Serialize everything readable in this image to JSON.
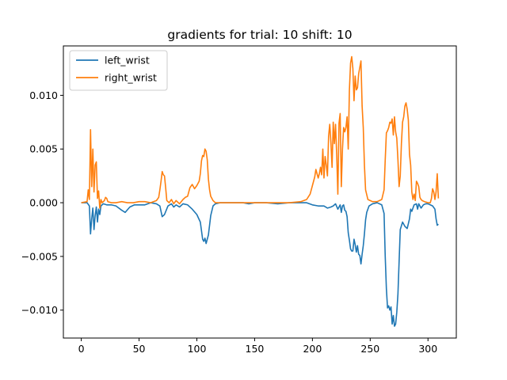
{
  "chart_data": {
    "type": "line",
    "title": "gradients for trial: 10 shift: 10",
    "xlabel": "",
    "ylabel": "",
    "xlim": [
      -15.5,
      324.5
    ],
    "ylim": [
      -0.0126,
      0.0146
    ],
    "xticks": [
      0,
      50,
      100,
      150,
      200,
      250,
      300
    ],
    "yticks": [
      -0.01,
      -0.005,
      0.0,
      0.005,
      0.01
    ],
    "ytick_labels": [
      "−0.010",
      "−0.005",
      "0.000",
      "0.005",
      "0.010"
    ],
    "grid": false,
    "legend_position": "upper-left",
    "series": [
      {
        "name": "left_wrist",
        "color": "#1f77b4",
        "points": [
          [
            0,
            0
          ],
          [
            5,
            0
          ],
          [
            7,
            -0.0003
          ],
          [
            8,
            -0.0029
          ],
          [
            9,
            -0.0015
          ],
          [
            10,
            -0.0005
          ],
          [
            11,
            -0.0025
          ],
          [
            12,
            -0.0012
          ],
          [
            13,
            -0.0004
          ],
          [
            14,
            -0.0018
          ],
          [
            15,
            -0.0006
          ],
          [
            16,
            -0.0011
          ],
          [
            17,
            -0.0003
          ],
          [
            19,
            -0.0001
          ],
          [
            22,
            -0.0002
          ],
          [
            26,
            -0.0002
          ],
          [
            30,
            -0.0003
          ],
          [
            35,
            -0.0007
          ],
          [
            38,
            -0.0009
          ],
          [
            42,
            -0.0004
          ],
          [
            46,
            -0.0002
          ],
          [
            50,
            -0.0002
          ],
          [
            55,
            -0.0002
          ],
          [
            60,
            0
          ],
          [
            65,
            -0.0001
          ],
          [
            68,
            -0.0003
          ],
          [
            70,
            -0.0013
          ],
          [
            72,
            -0.0011
          ],
          [
            75,
            -0.0003
          ],
          [
            78,
            -0.0001
          ],
          [
            80,
            -0.0004
          ],
          [
            82,
            -0.0002
          ],
          [
            85,
            -0.0004
          ],
          [
            88,
            -0.0001
          ],
          [
            92,
            -0.0002
          ],
          [
            96,
            -0.0006
          ],
          [
            100,
            -0.0011
          ],
          [
            103,
            -0.0018
          ],
          [
            105,
            -0.0034
          ],
          [
            106,
            -0.0036
          ],
          [
            107,
            -0.0033
          ],
          [
            108,
            -0.0038
          ],
          [
            110,
            -0.003
          ],
          [
            112,
            -0.0012
          ],
          [
            114,
            -0.0003
          ],
          [
            116,
            -0.0001
          ],
          [
            120,
            0
          ],
          [
            130,
            0
          ],
          [
            140,
            0
          ],
          [
            145,
            -0.0001
          ],
          [
            150,
            0
          ],
          [
            160,
            0
          ],
          [
            170,
            -0.0001
          ],
          [
            180,
            0
          ],
          [
            190,
            0
          ],
          [
            195,
            0
          ],
          [
            200,
            -0.0002
          ],
          [
            205,
            -0.0003
          ],
          [
            210,
            -0.0003
          ],
          [
            213,
            -0.0005
          ],
          [
            216,
            -0.0004
          ],
          [
            218,
            -0.0003
          ],
          [
            220,
            -0.0001
          ],
          [
            222,
            -0.0006
          ],
          [
            223,
            -0.0004
          ],
          [
            224,
            -0.0002
          ],
          [
            225,
            -0.0009
          ],
          [
            226,
            -0.0003
          ],
          [
            227,
            -0.0002
          ],
          [
            228,
            -0.0007
          ],
          [
            229,
            -0.0008
          ],
          [
            230,
            -0.0013
          ],
          [
            231,
            -0.0028
          ],
          [
            232,
            -0.0035
          ],
          [
            233,
            -0.0043
          ],
          [
            234,
            -0.0045
          ],
          [
            235,
            -0.0045
          ],
          [
            236,
            -0.0034
          ],
          [
            237,
            -0.0039
          ],
          [
            238,
            -0.0046
          ],
          [
            239,
            -0.004
          ],
          [
            240,
            -0.0048
          ],
          [
            241,
            -0.0049
          ],
          [
            242,
            -0.0057
          ],
          [
            243,
            -0.0048
          ],
          [
            244,
            -0.004
          ],
          [
            245,
            -0.0029
          ],
          [
            246,
            -0.0016
          ],
          [
            247,
            -0.0009
          ],
          [
            249,
            -0.0003
          ],
          [
            252,
            -0.0001
          ],
          [
            256,
            0
          ],
          [
            260,
            -0.0002
          ],
          [
            262,
            -0.001
          ],
          [
            263,
            -0.005
          ],
          [
            264,
            -0.008
          ],
          [
            265,
            -0.0098
          ],
          [
            266,
            -0.0096
          ],
          [
            267,
            -0.01
          ],
          [
            268,
            -0.0097
          ],
          [
            269,
            -0.0113
          ],
          [
            270,
            -0.0105
          ],
          [
            271,
            -0.0115
          ],
          [
            272,
            -0.0113
          ],
          [
            273,
            -0.0102
          ],
          [
            274,
            -0.0085
          ],
          [
            275,
            -0.0055
          ],
          [
            276,
            -0.0025
          ],
          [
            278,
            -0.0018
          ],
          [
            280,
            -0.0022
          ],
          [
            282,
            -0.0024
          ],
          [
            284,
            -0.0015
          ],
          [
            285,
            -0.0006
          ],
          [
            286,
            -0.0008
          ],
          [
            288,
            -0.0002
          ],
          [
            290,
            -0.0001
          ],
          [
            291,
            -0.0006
          ],
          [
            292,
            -0.0001
          ],
          [
            294,
            -0.0005
          ],
          [
            296,
            -0.0002
          ],
          [
            298,
            -0.0001
          ],
          [
            300,
            -0.0001
          ],
          [
            302,
            -0.0002
          ],
          [
            304,
            -0.0003
          ],
          [
            306,
            -0.0006
          ],
          [
            307,
            -0.0015
          ],
          [
            308,
            -0.0021
          ],
          [
            309,
            -0.002
          ]
        ]
      },
      {
        "name": "right_wrist",
        "color": "#ff7f0e",
        "points": [
          [
            0,
            0
          ],
          [
            5,
            0.0001
          ],
          [
            6,
            0.0012
          ],
          [
            7,
            0.0003
          ],
          [
            8,
            0.0068
          ],
          [
            9,
            0.0015
          ],
          [
            10,
            0.005
          ],
          [
            11,
            0.001
          ],
          [
            12,
            0.0035
          ],
          [
            13,
            0.0038
          ],
          [
            14,
            0.0004
          ],
          [
            15,
            0.0011
          ],
          [
            16,
            -0.0005
          ],
          [
            17,
            0.0003
          ],
          [
            18,
            0
          ],
          [
            20,
            0.0002
          ],
          [
            21,
            0.0005
          ],
          [
            22,
            0.0004
          ],
          [
            23,
            0.0001
          ],
          [
            26,
            0
          ],
          [
            30,
            0
          ],
          [
            35,
            0.0001
          ],
          [
            40,
            0
          ],
          [
            45,
            0
          ],
          [
            50,
            0.0001
          ],
          [
            55,
            0.0001
          ],
          [
            60,
            0
          ],
          [
            65,
            0.0002
          ],
          [
            67,
            0.0005
          ],
          [
            68,
            0.0012
          ],
          [
            69,
            0.002
          ],
          [
            70,
            0.0029
          ],
          [
            71,
            0.0026
          ],
          [
            72,
            0.0025
          ],
          [
            73,
            0.0014
          ],
          [
            74,
            0.0002
          ],
          [
            76,
            0
          ],
          [
            78,
            0.0003
          ],
          [
            80,
            -0.0001
          ],
          [
            82,
            0.0002
          ],
          [
            85,
            -0.0001
          ],
          [
            88,
            0.0003
          ],
          [
            90,
            0.0005
          ],
          [
            92,
            0.0006
          ],
          [
            94,
            0.0014
          ],
          [
            96,
            0.0017
          ],
          [
            98,
            0.0013
          ],
          [
            100,
            0.0016
          ],
          [
            102,
            0.002
          ],
          [
            103,
            0.0027
          ],
          [
            104,
            0.0039
          ],
          [
            105,
            0.0044
          ],
          [
            106,
            0.0043
          ],
          [
            107,
            0.005
          ],
          [
            108,
            0.0048
          ],
          [
            109,
            0.004
          ],
          [
            110,
            0.0022
          ],
          [
            111,
            0.0012
          ],
          [
            112,
            0.0006
          ],
          [
            114,
            0.0002
          ],
          [
            116,
            0
          ],
          [
            120,
            0
          ],
          [
            130,
            0
          ],
          [
            140,
            0
          ],
          [
            150,
            0
          ],
          [
            160,
            0
          ],
          [
            170,
            0
          ],
          [
            180,
            0
          ],
          [
            190,
            0.0001
          ],
          [
            195,
            0.0003
          ],
          [
            198,
            0.0008
          ],
          [
            200,
            0.0016
          ],
          [
            202,
            0.0024
          ],
          [
            203,
            0.0031
          ],
          [
            204,
            0.0027
          ],
          [
            205,
            0.0023
          ],
          [
            206,
            0.0027
          ],
          [
            207,
            0.0033
          ],
          [
            208,
            0.0026
          ],
          [
            209,
            0.005
          ],
          [
            210,
            0.0023
          ],
          [
            211,
            0.0043
          ],
          [
            212,
            0.0035
          ],
          [
            213,
            0.0025
          ],
          [
            214,
            0.0062
          ],
          [
            215,
            0.0073
          ],
          [
            216,
            0.0056
          ],
          [
            217,
            0.0033
          ],
          [
            218,
            0.0075
          ],
          [
            219,
            0.0055
          ],
          [
            220,
            0.0073
          ],
          [
            221,
            0.0045
          ],
          [
            222,
            0.0008
          ],
          [
            223,
            0.0074
          ],
          [
            224,
            0.0083
          ],
          [
            225,
            0.0015
          ],
          [
            226,
            0.005
          ],
          [
            227,
            0.007
          ],
          [
            228,
            0.0066
          ],
          [
            229,
            0.007
          ],
          [
            230,
            0.008
          ],
          [
            231,
            0.005
          ],
          [
            232,
            0.0105
          ],
          [
            233,
            0.013
          ],
          [
            234,
            0.0136
          ],
          [
            235,
            0.0125
          ],
          [
            236,
            0.0095
          ],
          [
            237,
            0.0118
          ],
          [
            238,
            0.0105
          ],
          [
            239,
            0.0107
          ],
          [
            240,
            0.012
          ],
          [
            241,
            0.0126
          ],
          [
            242,
            0.0132
          ],
          [
            243,
            0.009
          ],
          [
            244,
            0.007
          ],
          [
            245,
            0.0035
          ],
          [
            246,
            0.0012
          ],
          [
            248,
            0.0003
          ],
          [
            252,
            0.0001
          ],
          [
            256,
            0.0001
          ],
          [
            260,
            0.0003
          ],
          [
            262,
            0.0012
          ],
          [
            263,
            0.004
          ],
          [
            264,
            0.0065
          ],
          [
            265,
            0.0067
          ],
          [
            266,
            0.007
          ],
          [
            267,
            0.0075
          ],
          [
            268,
            0.0074
          ],
          [
            269,
            0.0078
          ],
          [
            270,
            0.0063
          ],
          [
            271,
            0.008
          ],
          [
            272,
            0.0066
          ],
          [
            273,
            0.006
          ],
          [
            274,
            0.004
          ],
          [
            275,
            0.0015
          ],
          [
            276,
            0.0025
          ],
          [
            277,
            0.0055
          ],
          [
            278,
            0.0075
          ],
          [
            279,
            0.008
          ],
          [
            280,
            0.009
          ],
          [
            281,
            0.0093
          ],
          [
            282,
            0.0087
          ],
          [
            283,
            0.0077
          ],
          [
            284,
            0.0045
          ],
          [
            285,
            0.0035
          ],
          [
            286,
            0.001
          ],
          [
            287,
            0.0003
          ],
          [
            288,
            0.0008
          ],
          [
            289,
            0.0002
          ],
          [
            290,
            0.002
          ],
          [
            291,
            0.0018
          ],
          [
            292,
            0.0015
          ],
          [
            293,
            0.0005
          ],
          [
            294,
            0.0003
          ],
          [
            295,
            0.0002
          ],
          [
            297,
            0.0001
          ],
          [
            300,
            0
          ],
          [
            302,
            0
          ],
          [
            303,
            0.0004
          ],
          [
            304,
            0.0013
          ],
          [
            305,
            0.001
          ],
          [
            306,
            0.0003
          ],
          [
            307,
            0.001
          ],
          [
            308,
            0.0027
          ],
          [
            309,
            0.0004
          ]
        ]
      }
    ]
  }
}
